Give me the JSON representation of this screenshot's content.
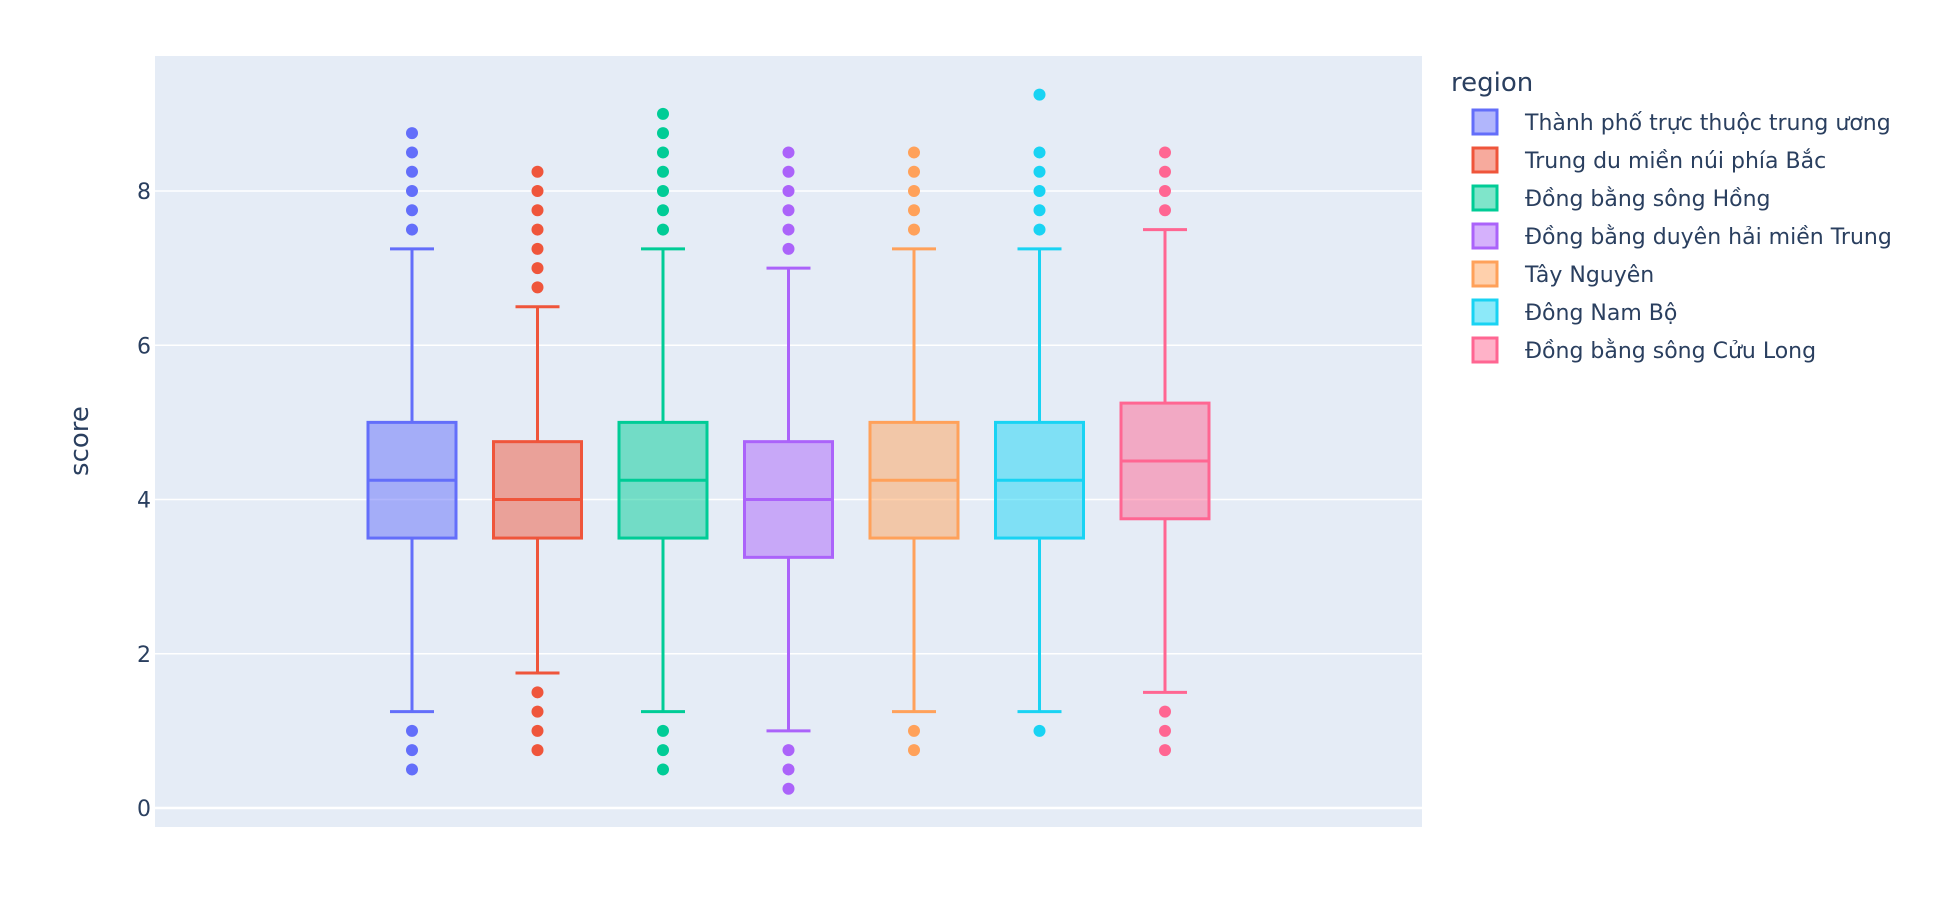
{
  "chart_data": {
    "type": "box",
    "ylabel": "score",
    "ylim": [
      -0.25,
      9.75
    ],
    "yticks": [
      0,
      2,
      4,
      6,
      8
    ],
    "grid": true,
    "legend_title": "region",
    "legend_position": "right",
    "series": [
      {
        "name": "Thành phố trực thuộc trung ương",
        "color": "#636efa",
        "q1": 3.5,
        "median": 4.25,
        "q3": 5.0,
        "lower_whisker": 1.25,
        "upper_whisker": 7.25,
        "outliers": [
          0.5,
          0.75,
          1.0,
          7.5,
          7.75,
          8.0,
          8.25,
          8.5,
          8.75
        ]
      },
      {
        "name": "Trung du miền núi phía Bắc",
        "color": "#EF553B",
        "q1": 3.5,
        "median": 4.0,
        "q3": 4.75,
        "lower_whisker": 1.75,
        "upper_whisker": 6.5,
        "outliers": [
          0.75,
          1.0,
          1.25,
          1.5,
          6.75,
          7.0,
          7.25,
          7.5,
          7.75,
          8.0,
          8.25
        ]
      },
      {
        "name": "Đồng bằng sông Hồng",
        "color": "#00cc96",
        "q1": 3.5,
        "median": 4.25,
        "q3": 5.0,
        "lower_whisker": 1.25,
        "upper_whisker": 7.25,
        "outliers": [
          0.5,
          0.75,
          1.0,
          7.5,
          7.75,
          8.0,
          8.25,
          8.5,
          8.75,
          9.0
        ]
      },
      {
        "name": "Đồng bằng duyên hải miền Trung",
        "color": "#ab63fa",
        "q1": 3.25,
        "median": 4.0,
        "q3": 4.75,
        "lower_whisker": 1.0,
        "upper_whisker": 7.0,
        "outliers": [
          0.25,
          0.5,
          0.75,
          7.25,
          7.5,
          7.75,
          8.0,
          8.25,
          8.5
        ]
      },
      {
        "name": "Tây Nguyên",
        "color": "#FFA15A",
        "q1": 3.5,
        "median": 4.25,
        "q3": 5.0,
        "lower_whisker": 1.25,
        "upper_whisker": 7.25,
        "outliers": [
          0.75,
          1.0,
          7.5,
          7.75,
          8.0,
          8.25,
          8.5
        ]
      },
      {
        "name": "Đông Nam Bộ",
        "color": "#19d3f3",
        "q1": 3.5,
        "median": 4.25,
        "q3": 5.0,
        "lower_whisker": 1.25,
        "upper_whisker": 7.25,
        "outliers": [
          1.0,
          7.5,
          7.75,
          8.0,
          8.25,
          8.5,
          9.25
        ]
      },
      {
        "name": "Đồng bằng sông Cửu Long",
        "color": "#FF6692",
        "q1": 3.75,
        "median": 4.5,
        "q3": 5.25,
        "lower_whisker": 1.5,
        "upper_whisker": 7.5,
        "outliers": [
          0.75,
          1.0,
          1.25,
          7.75,
          8.0,
          8.25,
          8.5
        ]
      }
    ]
  }
}
